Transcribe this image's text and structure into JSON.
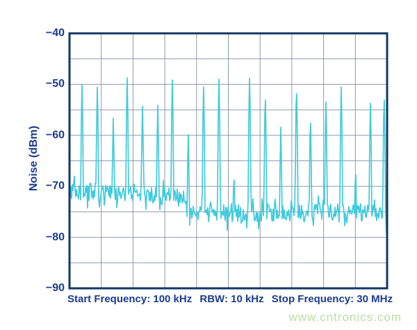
{
  "chart_data": {
    "type": "line",
    "title": "",
    "y_axis_title": "Noise (dBm)",
    "xlabel": "",
    "ylabel": "Noise (dBm)",
    "x_range_mhz": [
      0.1,
      30
    ],
    "ylim": [
      -90,
      -40
    ],
    "y_tick_values": [
      -40,
      -50,
      -60,
      -70,
      -80,
      -90
    ],
    "y_tick_labels": [
      "−40",
      "−50",
      "−60",
      "−70",
      "−80",
      "−90"
    ],
    "y_grid_step_db": 5,
    "x_grid_divisions": 10,
    "grid": "on",
    "legend": "none",
    "noise_floor": {
      "left_mean_dbm": -70.8,
      "left_end_mean_dbm": -72.2,
      "right_mean_dbm": -75.2,
      "transition_start_mhz": 10.7,
      "transition_end_mhz": 12.0,
      "jitter_db": 1.8
    },
    "peaks": [
      {
        "mhz": 1.28,
        "dbm": -50.0
      },
      {
        "mhz": 2.72,
        "dbm": -50.5
      },
      {
        "mhz": 4.22,
        "dbm": -56.6
      },
      {
        "mhz": 5.53,
        "dbm": -48.7
      },
      {
        "mhz": 6.97,
        "dbm": -54.3
      },
      {
        "mhz": 8.41,
        "dbm": -54.1
      },
      {
        "mhz": 9.78,
        "dbm": -49.1
      },
      {
        "mhz": 11.28,
        "dbm": -59.6
      },
      {
        "mhz": 12.72,
        "dbm": -50.3
      },
      {
        "mhz": 14.17,
        "dbm": -48.9
      },
      {
        "mhz": 15.58,
        "dbm": -67.0
      },
      {
        "mhz": 17.05,
        "dbm": -48.7
      },
      {
        "mhz": 18.53,
        "dbm": -51.9
      },
      {
        "mhz": 19.99,
        "dbm": -58.4
      },
      {
        "mhz": 21.47,
        "dbm": -50.3
      },
      {
        "mhz": 22.78,
        "dbm": -56.2
      },
      {
        "mhz": 24.24,
        "dbm": -53.4
      },
      {
        "mhz": 25.68,
        "dbm": -50.5
      },
      {
        "mhz": 27.03,
        "dbm": -66.0
      },
      {
        "mhz": 28.43,
        "dbm": -53.7
      },
      {
        "mhz": 29.72,
        "dbm": -52.1
      }
    ],
    "annotations": {
      "start": "Start Frequency: 100 kHz",
      "rbw": "RBW: 10 kHz",
      "stop": "Stop Frequency: 30 MHz"
    }
  },
  "watermark": {
    "text": "www.cntronics.com"
  },
  "colors": {
    "trace": "#3fcbde",
    "grid": "#8d98a8",
    "border": "#123765",
    "label_text": "#1a3b8f",
    "watermark": "#b9dd9e",
    "background": "#ffffff"
  }
}
